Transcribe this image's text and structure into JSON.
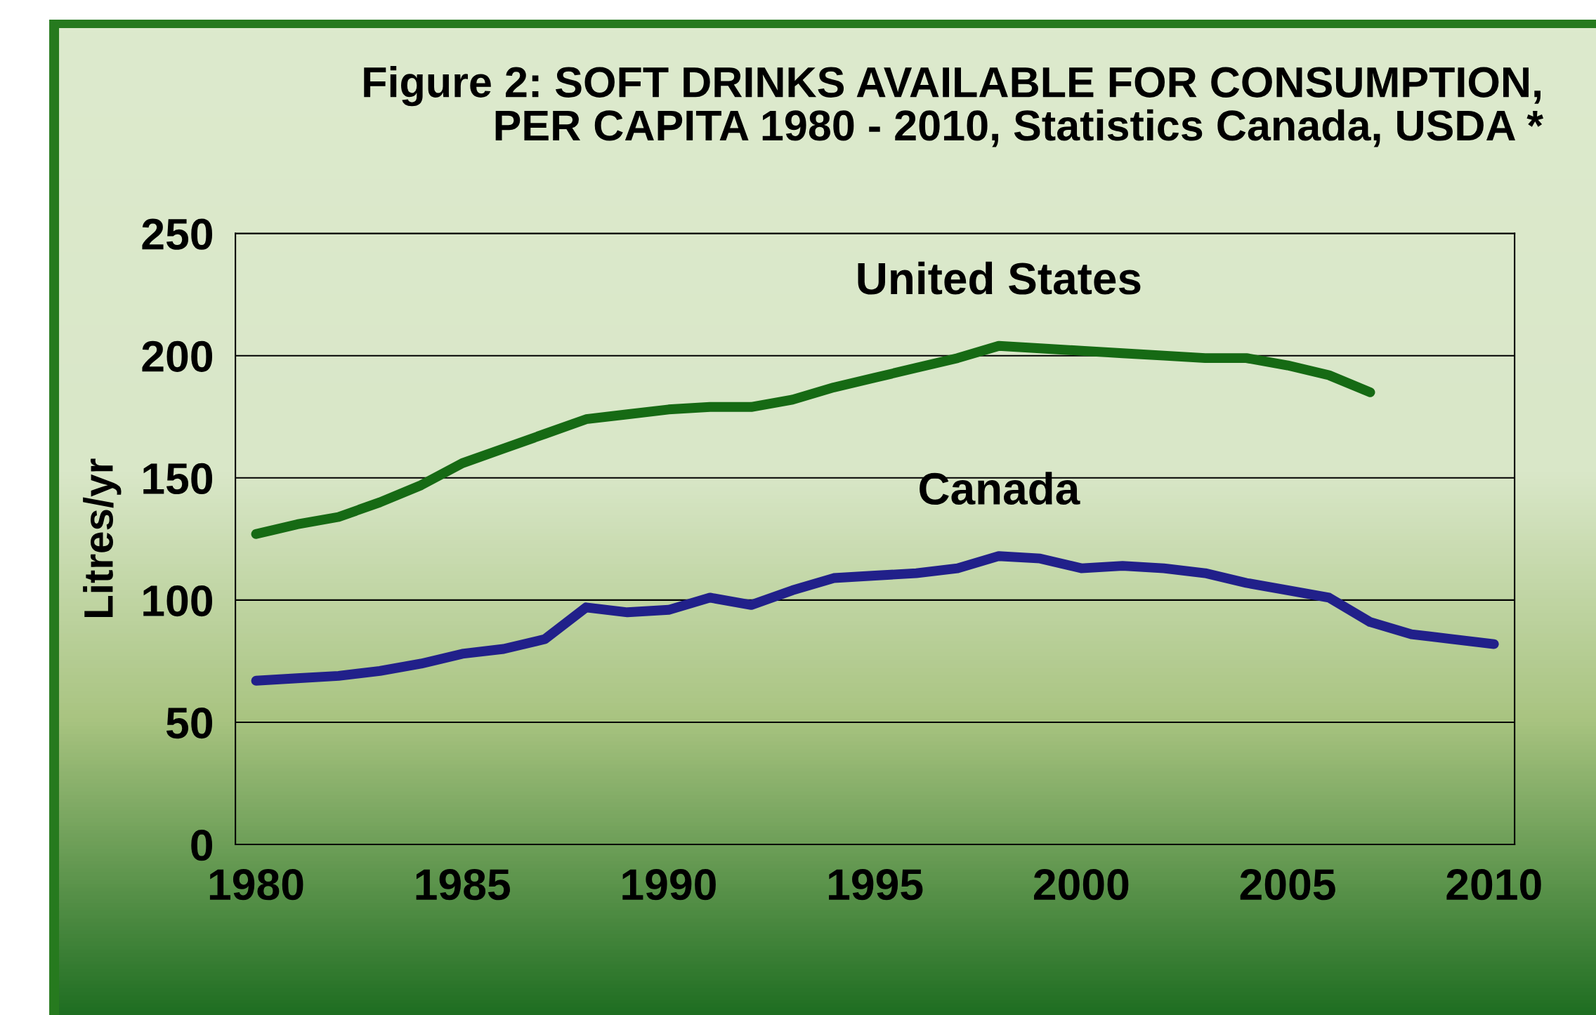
{
  "chart_data": {
    "type": "line",
    "title": "Figure 2: SOFT DRINKS AVAILABLE FOR CONSUMPTION,\nPER CAPITA 1980 - 2010, Statistics Canada, USDA *",
    "ylabel": "Litres/yr",
    "series": [
      {
        "name": "United States",
        "color": "#166a14",
        "x": [
          1980,
          1981,
          1982,
          1983,
          1984,
          1985,
          1986,
          1987,
          1988,
          1989,
          1990,
          1991,
          1992,
          1993,
          1994,
          1995,
          1996,
          1997,
          1998,
          1999,
          2000,
          2001,
          2002,
          2003,
          2004,
          2005,
          2006,
          2007
        ],
        "values": [
          127,
          131,
          134,
          140,
          147,
          156,
          162,
          168,
          174,
          176,
          178,
          179,
          179,
          182,
          187,
          191,
          195,
          199,
          204,
          203,
          202,
          201,
          200,
          199,
          199,
          196,
          192,
          185
        ]
      },
      {
        "name": "Canada",
        "color": "#21208a",
        "x": [
          1980,
          1981,
          1982,
          1983,
          1984,
          1985,
          1986,
          1987,
          1988,
          1989,
          1990,
          1991,
          1992,
          1993,
          1994,
          1995,
          1996,
          1997,
          1998,
          1999,
          2000,
          2001,
          2002,
          2003,
          2004,
          2005,
          2006,
          2007,
          2008,
          2009,
          2010
        ],
        "values": [
          67,
          68,
          69,
          71,
          74,
          78,
          80,
          84,
          97,
          95,
          96,
          101,
          98,
          104,
          109,
          110,
          111,
          113,
          118,
          117,
          113,
          114,
          113,
          111,
          107,
          104,
          101,
          91,
          86,
          84,
          82
        ]
      }
    ],
    "xlim": [
      1979.5,
      2010.5
    ],
    "xticks": [
      1980,
      1985,
      1990,
      1995,
      2000,
      2005,
      2010
    ],
    "ylim": [
      0,
      250
    ],
    "yticks": [
      0,
      50,
      100,
      150,
      200,
      250
    ],
    "grid": "y",
    "legend": false,
    "marker": "none",
    "line_style": "solid"
  }
}
